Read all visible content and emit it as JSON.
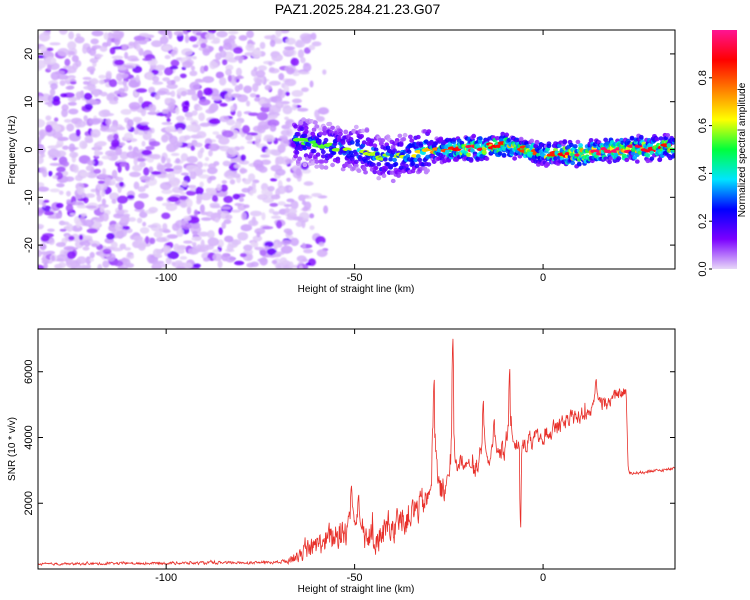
{
  "page_title": "PAZ1.2025.284.21.23.G07",
  "chart_data": [
    {
      "type": "heatmap",
      "name": "spectrogram",
      "xlabel": "Height of straight line (km)",
      "ylabel": "Frequency (Hz)",
      "xlim": [
        -134,
        35
      ],
      "ylim": [
        -25,
        25
      ],
      "x_ticks": [
        -100,
        -50,
        0
      ],
      "x_tick_labels": [
        "-100",
        "-50",
        "0"
      ],
      "y_ticks": [
        -20,
        -10,
        0,
        10,
        20
      ],
      "y_tick_labels": [
        "-20",
        "-10",
        "0",
        "10",
        "20"
      ],
      "colorbar": {
        "label": "Normalized spectral amplitude",
        "range": [
          0,
          1
        ],
        "ticks": [
          0,
          0.2,
          0.4,
          0.6,
          0.8
        ],
        "tick_labels": [
          "0.0",
          "0.2",
          "0.4",
          "0.6",
          "0.8"
        ],
        "colormap": [
          "#e8d8f8",
          "#7b00ff",
          "#0000ff",
          "#00e5ff",
          "#00ff3c",
          "#ffff00",
          "#ff7f00",
          "#ff0000",
          "#ff1493"
        ]
      },
      "ridge": {
        "x": [
          -66,
          -60,
          -50,
          -40,
          -30,
          -20,
          -10,
          0,
          10,
          20,
          35
        ],
        "freq": [
          2,
          1,
          0,
          -2,
          0,
          0,
          1,
          -1,
          -1,
          0,
          0.5
        ],
        "amplitude": [
          0.3,
          0.28,
          0.35,
          0.32,
          0.45,
          0.7,
          0.6,
          0.55,
          0.7,
          0.72,
          0.6
        ]
      },
      "noise_region": {
        "x_from": -134,
        "x_to": -65,
        "amplitude_range": [
          0.0,
          0.15
        ]
      }
    },
    {
      "type": "line",
      "name": "snr",
      "xlabel": "Height of straight line (km)",
      "ylabel": "SNR (10 * v/v)",
      "xlim": [
        -134,
        35
      ],
      "ylim": [
        0,
        7300
      ],
      "x_ticks": [
        -100,
        -50,
        0
      ],
      "x_tick_labels": [
        "-100",
        "-50",
        "0"
      ],
      "y_ticks": [
        2000,
        4000,
        6000
      ],
      "y_tick_labels": [
        "2000",
        "4000",
        "6000"
      ],
      "color": "#e8302a",
      "envelope": {
        "x": [
          -134,
          -70,
          -66,
          -60,
          -55,
          -50,
          -45,
          -40,
          -35,
          -30,
          -25,
          -20,
          -15,
          -10,
          -5,
          0,
          5,
          10,
          15,
          20,
          22,
          22.5,
          35
        ],
        "base": [
          150,
          200,
          350,
          750,
          1000,
          1200,
          900,
          1300,
          1700,
          2200,
          2600,
          3000,
          3300,
          3500,
          3800,
          4100,
          4400,
          4700,
          5000,
          5300,
          5400,
          2900,
          3050
        ],
        "spread": [
          60,
          80,
          300,
          600,
          900,
          1000,
          800,
          900,
          900,
          800,
          700,
          600,
          600,
          600,
          500,
          500,
          450,
          450,
          400,
          300,
          250,
          80,
          80
        ]
      },
      "spikes": [
        {
          "x": -51,
          "value": 2600
        },
        {
          "x": -49,
          "value": 2300
        },
        {
          "x": -29,
          "value": 5850
        },
        {
          "x": -24,
          "value": 7200
        },
        {
          "x": -22,
          "value": 3500
        },
        {
          "x": -20,
          "value": 3200
        },
        {
          "x": -16,
          "value": 5200
        },
        {
          "x": -13,
          "value": 4600
        },
        {
          "x": -9,
          "value": 6200
        },
        {
          "x": -6,
          "value": 1100
        },
        {
          "x": 14,
          "value": 5800
        }
      ]
    }
  ]
}
